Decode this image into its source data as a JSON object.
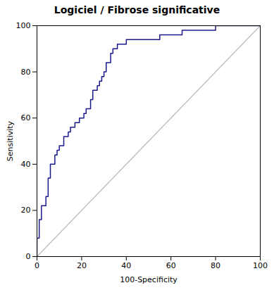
{
  "chart_data": {
    "type": "line",
    "title": "Logiciel / Fibrose significative",
    "xlabel": "100-Specificity",
    "ylabel": "Sensitivity",
    "xlim": [
      0,
      100
    ],
    "ylim": [
      0,
      100
    ],
    "xticks": [
      0,
      20,
      40,
      60,
      80,
      100
    ],
    "yticks": [
      0,
      20,
      40,
      60,
      80,
      100
    ],
    "grid": false,
    "series": [
      {
        "color": "#c0c0c0",
        "x": [
          0,
          100
        ],
        "values": [
          0,
          100
        ]
      },
      {
        "color": "#1a1a8c",
        "x": [
          0,
          0,
          1,
          1,
          2,
          2,
          3,
          4,
          4,
          5,
          5,
          6,
          6,
          7,
          8,
          8,
          9,
          9,
          10,
          10,
          11,
          12,
          12,
          13,
          14,
          14,
          15,
          15,
          16,
          17,
          17,
          18,
          19,
          19,
          20,
          21,
          21,
          22,
          22,
          23,
          24,
          24,
          25,
          25,
          26,
          27,
          27,
          28,
          28,
          29,
          29,
          30,
          30,
          31,
          31,
          32,
          33,
          33,
          34,
          34,
          35,
          36,
          36,
          40,
          40,
          50,
          55,
          55,
          60,
          65,
          65,
          80,
          80,
          100
        ],
        "values": [
          0,
          8,
          8,
          16,
          16,
          22,
          22,
          22,
          26,
          26,
          34,
          34,
          40,
          40,
          40,
          44,
          44,
          46,
          46,
          48,
          48,
          48,
          52,
          52,
          52,
          54,
          54,
          56,
          56,
          56,
          58,
          58,
          58,
          60,
          60,
          60,
          62,
          62,
          64,
          64,
          64,
          68,
          68,
          72,
          72,
          72,
          74,
          74,
          76,
          76,
          78,
          78,
          80,
          80,
          84,
          84,
          84,
          88,
          88,
          90,
          90,
          90,
          92,
          92,
          94,
          94,
          94,
          96,
          96,
          96,
          98,
          98,
          100,
          100
        ]
      }
    ]
  }
}
